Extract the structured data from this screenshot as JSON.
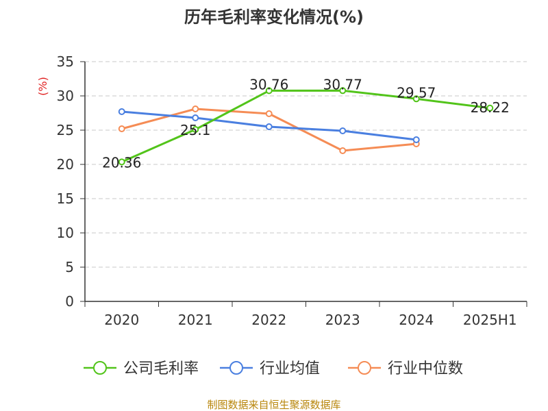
{
  "chart_data": {
    "type": "line",
    "title": "历年毛利率变化情况(%)",
    "ylabel": "(%)",
    "xlabel": "",
    "categories": [
      "2020",
      "2021",
      "2022",
      "2023",
      "2024",
      "2025H1"
    ],
    "ylim": [
      0,
      35
    ],
    "yticks": [
      0,
      5,
      10,
      15,
      20,
      25,
      30,
      35
    ],
    "grid": true,
    "legend_position": "bottom",
    "series": [
      {
        "name": "公司毛利率",
        "color": "#52c41a",
        "values": [
          20.36,
          25.1,
          30.76,
          30.77,
          29.57,
          28.22
        ],
        "labels": [
          "20.36",
          "25.1",
          "30.76",
          "30.77",
          "29.57",
          "28.22"
        ]
      },
      {
        "name": "行业均值",
        "color": "#4a7fe0",
        "values": [
          27.7,
          26.8,
          25.5,
          24.9,
          23.6,
          null
        ]
      },
      {
        "name": "行业中位数",
        "color": "#f58c55",
        "values": [
          25.2,
          28.1,
          27.4,
          22.0,
          23.0,
          null
        ]
      }
    ]
  },
  "source": "制图数据来自恒生聚源数据库"
}
